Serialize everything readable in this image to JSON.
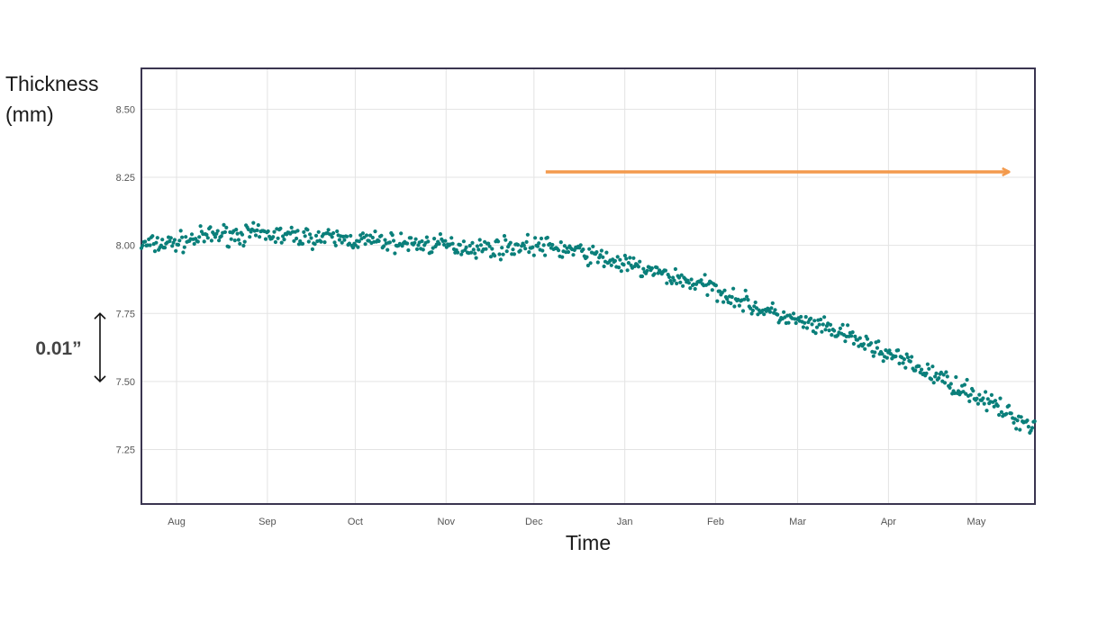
{
  "chart_data": {
    "type": "scatter",
    "title": "",
    "ylabel_lines": [
      "Thickness",
      "(mm)"
    ],
    "xlabel": "Time",
    "x_tick_labels": [
      "Aug",
      "Sep",
      "Oct",
      "Nov",
      "Dec",
      "Jan",
      "Feb",
      "Mar",
      "Apr",
      "May"
    ],
    "y_tick_labels": [
      "8.50",
      "8.25",
      "8.00",
      "7.75",
      "7.50",
      "7.25"
    ],
    "y_ticks": [
      8.5,
      8.25,
      8.0,
      7.75,
      7.5,
      7.25
    ],
    "ylim": [
      7.05,
      8.65
    ],
    "xlim": [
      "2013-07-20",
      "2014-05-21"
    ],
    "grid": true,
    "series": [
      {
        "color": "#0a7f7a",
        "points": [
          [
            "2013-07-20",
            8.0
          ],
          [
            "2013-08-01",
            8.01
          ],
          [
            "2013-08-15",
            8.04
          ],
          [
            "2013-09-01",
            8.04
          ],
          [
            "2013-09-15",
            8.03
          ],
          [
            "2013-10-01",
            8.02
          ],
          [
            "2013-10-15",
            8.01
          ],
          [
            "2013-11-01",
            8.0
          ],
          [
            "2013-11-15",
            7.99
          ],
          [
            "2013-12-01",
            8.0
          ],
          [
            "2013-12-15",
            7.98
          ],
          [
            "2014-01-01",
            7.93
          ],
          [
            "2014-01-15",
            7.89
          ],
          [
            "2014-02-01",
            7.84
          ],
          [
            "2014-02-15",
            7.77
          ],
          [
            "2014-03-01",
            7.72
          ],
          [
            "2014-03-15",
            7.68
          ],
          [
            "2014-04-01",
            7.6
          ],
          [
            "2014-04-15",
            7.53
          ],
          [
            "2014-05-01",
            7.45
          ],
          [
            "2014-05-15",
            7.36
          ],
          [
            "2014-05-21",
            7.34
          ]
        ],
        "scatter": 0.035
      }
    ],
    "annotations": [
      {
        "type": "arrow",
        "color": "#f39a4d",
        "x_from": "2013-12-05",
        "x_to": "2014-05-12",
        "y": 8.27
      },
      {
        "type": "double-arrow",
        "label": "0.01”",
        "y_from": 7.75,
        "y_to": 7.5
      }
    ]
  }
}
